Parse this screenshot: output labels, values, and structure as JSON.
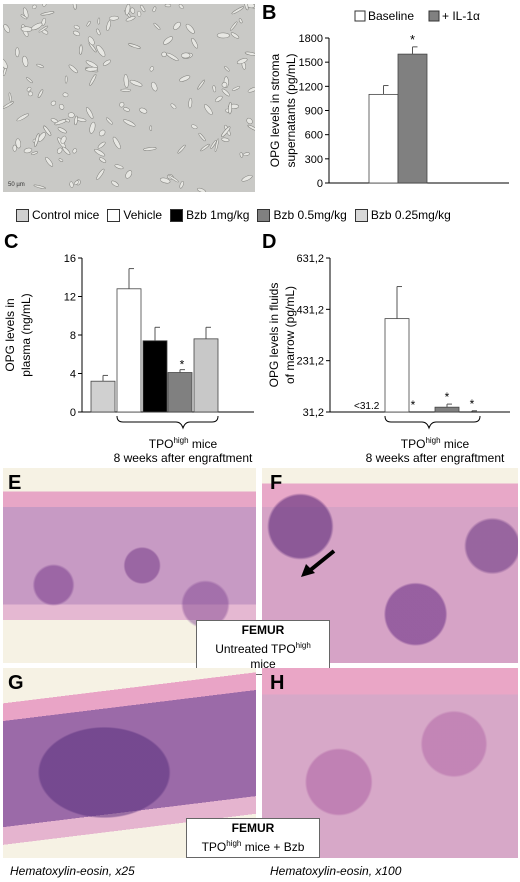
{
  "panel_letters": {
    "A": "A",
    "B": "B",
    "C": "C",
    "D": "D",
    "E": "E",
    "F": "F",
    "G": "G",
    "H": "H"
  },
  "panel_a": {
    "scale_label": "50 µm"
  },
  "chart_data": [
    {
      "id": "B",
      "type": "bar",
      "categories": [
        "Baseline",
        "+ IL-1α"
      ],
      "values": [
        1100,
        1600
      ],
      "errors": [
        110,
        90
      ],
      "ylabel": "OPG levels in stroma supernatants (pg/mL)",
      "ylim": [
        0,
        1800
      ],
      "yticks": [
        "0",
        "300",
        "600",
        "900",
        "1200",
        "1500",
        "1800"
      ],
      "legend": [
        "Baseline",
        "+ IL-1α"
      ],
      "colors": [
        "#ffffff",
        "#808080"
      ],
      "annotations": [
        "*"
      ],
      "legend_position": "top"
    },
    {
      "id": "C",
      "type": "bar",
      "categories": [
        "Control mice",
        "Vehicle",
        "Bzb 1mg/kg",
        "Bzb 0.5mg/kg",
        "Bzb 0.25mg/kg"
      ],
      "values": [
        3.2,
        12.8,
        7.4,
        4.1,
        7.6
      ],
      "errors": [
        0.6,
        2.1,
        1.4,
        0.3,
        1.2
      ],
      "ylabel": "OPG levels in plasma (ng/mL)",
      "ylim": [
        0,
        16
      ],
      "yticks": [
        "0",
        "4",
        "8",
        "12",
        "16"
      ],
      "colors": [
        "#d0d0d0",
        "#ffffff",
        "#000000",
        "#808080",
        "#c8c8c8"
      ],
      "annotations": [
        "*"
      ]
    },
    {
      "id": "D",
      "type": "bar",
      "categories": [
        "Control mice",
        "Vehicle",
        "Bzb 1mg/kg",
        "Bzb 0.5mg/kg",
        "Bzb 0.25mg/kg"
      ],
      "values": [
        31.2,
        395,
        31.2,
        50,
        33
      ],
      "errors": [
        0,
        125,
        0,
        12,
        3
      ],
      "ylabel": "OPG levels in fluids of marrow (pg/mL)",
      "ylim": [
        31.2,
        631.2
      ],
      "yticks": [
        "31,2",
        "231,2",
        "431,2",
        "631,2"
      ],
      "colors": [
        "#d0d0d0",
        "#ffffff",
        "#000000",
        "#808080",
        "#c8c8c8"
      ],
      "annotations": [
        "<31.2",
        "*",
        "*",
        "*"
      ]
    }
  ],
  "legend_shared": {
    "items": [
      {
        "label": "Control mice",
        "color": "#d0d0d0"
      },
      {
        "label": "Vehicle",
        "color": "#ffffff"
      },
      {
        "label": "Bzb 1mg/kg",
        "color": "#000000"
      },
      {
        "label": "Bzb 0.5mg/kg",
        "color": "#808080"
      },
      {
        "label": "Bzb 0.25mg/kg",
        "color": "#d8d8d8"
      }
    ]
  },
  "bracket_label": {
    "main": "TPO",
    "sup": "high",
    "rest": " mice",
    "line2": "8 weeks after engraftment"
  },
  "femur_box_1": {
    "title": "FEMUR",
    "pre": "Untreated TPO",
    "sup": "high",
    "post": " mice"
  },
  "femur_box_2": {
    "title": "FEMUR",
    "pre": "TPO",
    "sup": "high",
    "post": " mice + Bzb"
  },
  "captions": {
    "left": "Hematoxylin-eosin, x25",
    "right": "Hematoxylin-eosin, x100"
  }
}
